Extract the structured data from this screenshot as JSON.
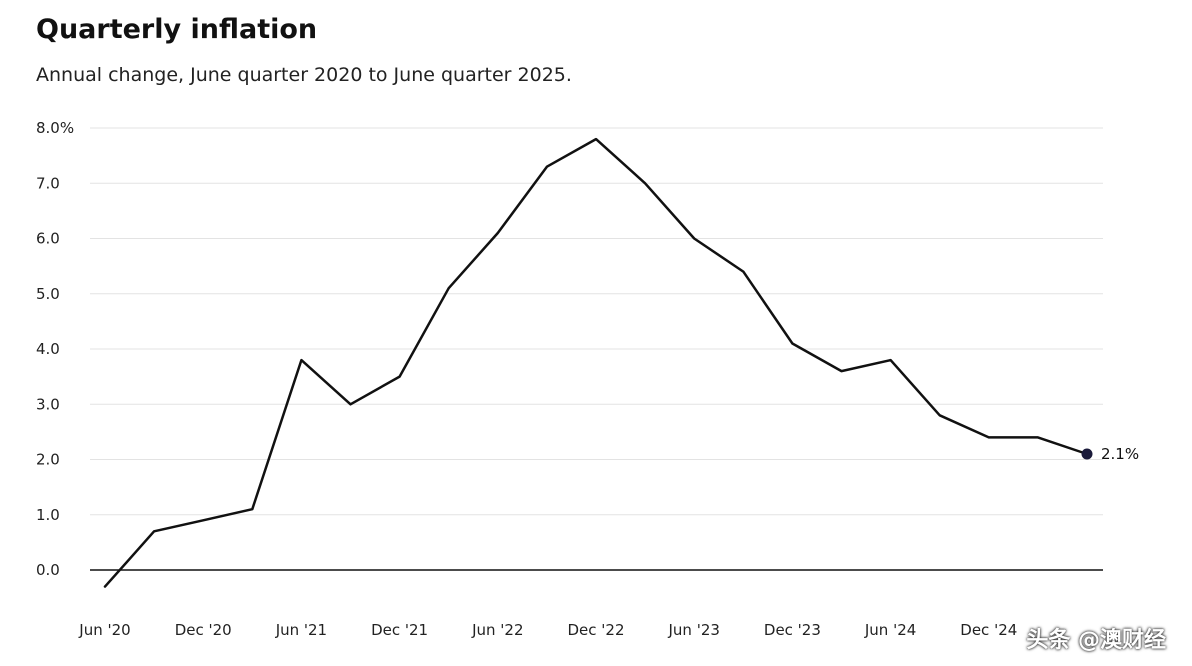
{
  "header": {
    "title": "Quarterly inflation",
    "subtitle": "Annual change, June quarter 2020 to June quarter 2025."
  },
  "watermark": "头条 @澳财经",
  "chart_data": {
    "type": "line",
    "title": "Quarterly inflation",
    "subtitle": "Annual change, June quarter 2020 to June quarter 2025.",
    "xlabel": "",
    "ylabel": "",
    "ylim": [
      0,
      8
    ],
    "yticks": [
      "8.0%",
      "7.0",
      "6.0",
      "5.0",
      "4.0",
      "3.0",
      "2.0",
      "1.0",
      "0.0"
    ],
    "ytick_values": [
      8,
      7,
      6,
      5,
      4,
      3,
      2,
      1,
      0
    ],
    "xtick_labels": [
      "Jun '20",
      "Dec '20",
      "Jun '21",
      "Dec '21",
      "Jun '22",
      "Dec '22",
      "Jun '23",
      "Dec '23",
      "Jun '24",
      "Dec '24"
    ],
    "grid": true,
    "line_color": "#111111",
    "series": [
      {
        "values": [
          -0.3,
          0.7,
          0.9,
          1.1,
          3.8,
          3.0,
          3.5,
          5.1,
          6.1,
          7.3,
          7.8,
          7.0,
          6.0,
          5.4,
          4.1,
          3.6,
          3.8,
          2.8,
          2.4,
          2.4,
          2.1
        ]
      }
    ],
    "end_label": "2.1%"
  }
}
